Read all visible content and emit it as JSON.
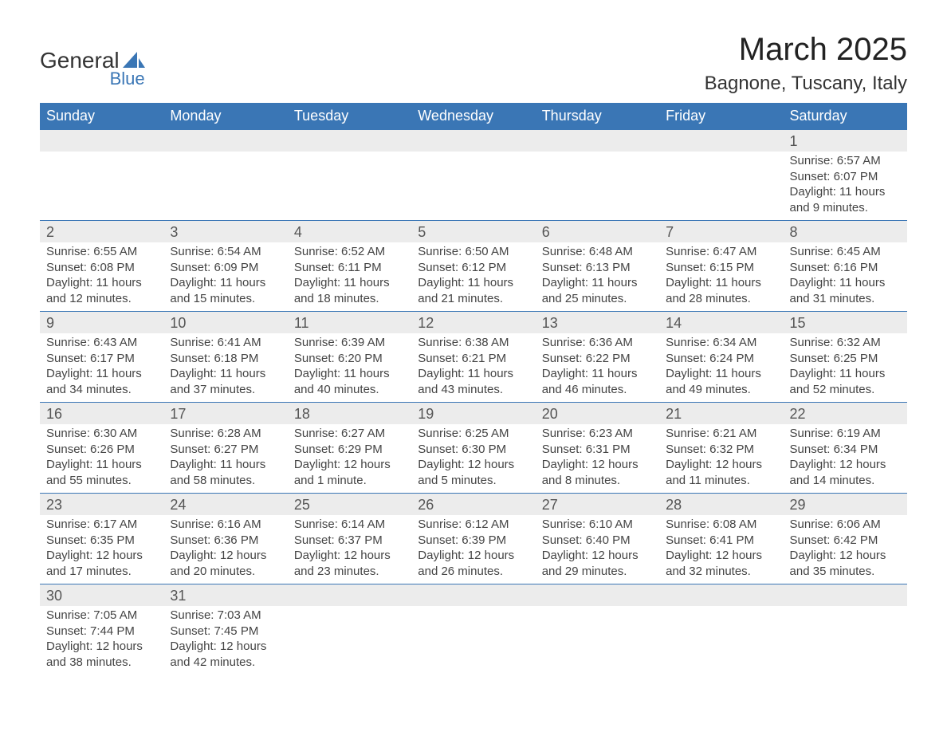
{
  "logo": {
    "word1": "General",
    "word2": "Blue",
    "accent_color": "#3a76b5",
    "text_color": "#333333"
  },
  "title": "March 2025",
  "location": "Bagnone, Tuscany, Italy",
  "colors": {
    "header_bg": "#3a76b5",
    "header_text": "#ffffff",
    "row_border": "#3a76b5",
    "daynum_bg": "#ececec",
    "body_text": "#444444",
    "page_bg": "#ffffff"
  },
  "fonts": {
    "title_size": 40,
    "location_size": 24,
    "header_size": 18,
    "daynum_size": 18,
    "body_size": 15
  },
  "weekdays": [
    "Sunday",
    "Monday",
    "Tuesday",
    "Wednesday",
    "Thursday",
    "Friday",
    "Saturday"
  ],
  "first_day_col": 6,
  "days": [
    {
      "n": 1,
      "sunrise": "6:57 AM",
      "sunset": "6:07 PM",
      "daylight": "11 hours and 9 minutes."
    },
    {
      "n": 2,
      "sunrise": "6:55 AM",
      "sunset": "6:08 PM",
      "daylight": "11 hours and 12 minutes."
    },
    {
      "n": 3,
      "sunrise": "6:54 AM",
      "sunset": "6:09 PM",
      "daylight": "11 hours and 15 minutes."
    },
    {
      "n": 4,
      "sunrise": "6:52 AM",
      "sunset": "6:11 PM",
      "daylight": "11 hours and 18 minutes."
    },
    {
      "n": 5,
      "sunrise": "6:50 AM",
      "sunset": "6:12 PM",
      "daylight": "11 hours and 21 minutes."
    },
    {
      "n": 6,
      "sunrise": "6:48 AM",
      "sunset": "6:13 PM",
      "daylight": "11 hours and 25 minutes."
    },
    {
      "n": 7,
      "sunrise": "6:47 AM",
      "sunset": "6:15 PM",
      "daylight": "11 hours and 28 minutes."
    },
    {
      "n": 8,
      "sunrise": "6:45 AM",
      "sunset": "6:16 PM",
      "daylight": "11 hours and 31 minutes."
    },
    {
      "n": 9,
      "sunrise": "6:43 AM",
      "sunset": "6:17 PM",
      "daylight": "11 hours and 34 minutes."
    },
    {
      "n": 10,
      "sunrise": "6:41 AM",
      "sunset": "6:18 PM",
      "daylight": "11 hours and 37 minutes."
    },
    {
      "n": 11,
      "sunrise": "6:39 AM",
      "sunset": "6:20 PM",
      "daylight": "11 hours and 40 minutes."
    },
    {
      "n": 12,
      "sunrise": "6:38 AM",
      "sunset": "6:21 PM",
      "daylight": "11 hours and 43 minutes."
    },
    {
      "n": 13,
      "sunrise": "6:36 AM",
      "sunset": "6:22 PM",
      "daylight": "11 hours and 46 minutes."
    },
    {
      "n": 14,
      "sunrise": "6:34 AM",
      "sunset": "6:24 PM",
      "daylight": "11 hours and 49 minutes."
    },
    {
      "n": 15,
      "sunrise": "6:32 AM",
      "sunset": "6:25 PM",
      "daylight": "11 hours and 52 minutes."
    },
    {
      "n": 16,
      "sunrise": "6:30 AM",
      "sunset": "6:26 PM",
      "daylight": "11 hours and 55 minutes."
    },
    {
      "n": 17,
      "sunrise": "6:28 AM",
      "sunset": "6:27 PM",
      "daylight": "11 hours and 58 minutes."
    },
    {
      "n": 18,
      "sunrise": "6:27 AM",
      "sunset": "6:29 PM",
      "daylight": "12 hours and 1 minute."
    },
    {
      "n": 19,
      "sunrise": "6:25 AM",
      "sunset": "6:30 PM",
      "daylight": "12 hours and 5 minutes."
    },
    {
      "n": 20,
      "sunrise": "6:23 AM",
      "sunset": "6:31 PM",
      "daylight": "12 hours and 8 minutes."
    },
    {
      "n": 21,
      "sunrise": "6:21 AM",
      "sunset": "6:32 PM",
      "daylight": "12 hours and 11 minutes."
    },
    {
      "n": 22,
      "sunrise": "6:19 AM",
      "sunset": "6:34 PM",
      "daylight": "12 hours and 14 minutes."
    },
    {
      "n": 23,
      "sunrise": "6:17 AM",
      "sunset": "6:35 PM",
      "daylight": "12 hours and 17 minutes."
    },
    {
      "n": 24,
      "sunrise": "6:16 AM",
      "sunset": "6:36 PM",
      "daylight": "12 hours and 20 minutes."
    },
    {
      "n": 25,
      "sunrise": "6:14 AM",
      "sunset": "6:37 PM",
      "daylight": "12 hours and 23 minutes."
    },
    {
      "n": 26,
      "sunrise": "6:12 AM",
      "sunset": "6:39 PM",
      "daylight": "12 hours and 26 minutes."
    },
    {
      "n": 27,
      "sunrise": "6:10 AM",
      "sunset": "6:40 PM",
      "daylight": "12 hours and 29 minutes."
    },
    {
      "n": 28,
      "sunrise": "6:08 AM",
      "sunset": "6:41 PM",
      "daylight": "12 hours and 32 minutes."
    },
    {
      "n": 29,
      "sunrise": "6:06 AM",
      "sunset": "6:42 PM",
      "daylight": "12 hours and 35 minutes."
    },
    {
      "n": 30,
      "sunrise": "7:05 AM",
      "sunset": "7:44 PM",
      "daylight": "12 hours and 38 minutes."
    },
    {
      "n": 31,
      "sunrise": "7:03 AM",
      "sunset": "7:45 PM",
      "daylight": "12 hours and 42 minutes."
    }
  ],
  "labels": {
    "sunrise": "Sunrise:",
    "sunset": "Sunset:",
    "daylight": "Daylight:"
  }
}
